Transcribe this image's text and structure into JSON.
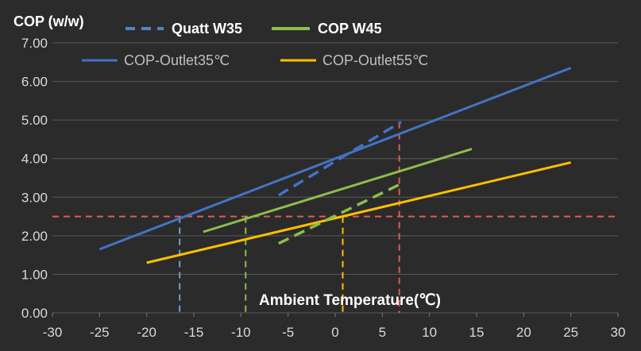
{
  "chart_data": {
    "type": "line",
    "title": "COP (w/w)",
    "xlabel": "Ambient Temperature(℃)",
    "ylabel": "COP (w/w)",
    "xlim": [
      -30,
      30
    ],
    "ylim": [
      0,
      7
    ],
    "x_ticks": [
      "-30",
      "-25",
      "-20",
      "-15",
      "-10",
      "-5",
      "0",
      "5",
      "10",
      "15",
      "20",
      "25",
      "30"
    ],
    "y_ticks": [
      "0.00",
      "1.00",
      "2.00",
      "3.00",
      "4.00",
      "5.00",
      "6.00",
      "7.00"
    ],
    "grid": "horizontal",
    "legend": [
      {
        "name": "Quatt W35",
        "style": "dashed"
      },
      {
        "name": "COP W45",
        "style": "solid"
      },
      {
        "name": "COP-Outlet35℃",
        "style": "solid"
      },
      {
        "name": "COP-Outlet55℃",
        "style": "solid"
      }
    ],
    "series": [
      {
        "name": "COP-Outlet35℃",
        "color": "#4472c4",
        "style": "solid",
        "x": [
          -25,
          25
        ],
        "y": [
          1.65,
          6.35
        ]
      },
      {
        "name": "COP-Outlet55℃",
        "color": "#ffc000",
        "style": "solid",
        "x": [
          -20,
          25
        ],
        "y": [
          1.3,
          3.9
        ]
      },
      {
        "name": "COP W45",
        "color": "#8bbf4a",
        "style": "solid",
        "x": [
          -14,
          14.5
        ],
        "y": [
          2.1,
          4.25
        ]
      },
      {
        "name": "Quatt W35",
        "color": "#4472c4",
        "style": "dashed",
        "x": [
          -6,
          7
        ],
        "y": [
          3.05,
          4.95
        ]
      },
      {
        "name": "COP W45 (dashed extension)",
        "color": "#8bbf4a",
        "style": "dashed",
        "x": [
          -6,
          7
        ],
        "y": [
          1.8,
          3.35
        ]
      }
    ],
    "reference_lines": [
      {
        "orientation": "horizontal",
        "y": 2.5,
        "color": "#e05a5a"
      },
      {
        "orientation": "vertical",
        "x": -16.5,
        "y_top": 2.5,
        "color": "#6f9fd8"
      },
      {
        "orientation": "vertical",
        "x": -9.5,
        "y_top": 2.5,
        "color": "#8bbf4a"
      },
      {
        "orientation": "vertical",
        "x": 0.8,
        "y_top": 2.5,
        "color": "#ffc000"
      },
      {
        "orientation": "vertical",
        "x": 6.8,
        "y_top": 4.95,
        "color": "#e05a5a"
      }
    ]
  }
}
